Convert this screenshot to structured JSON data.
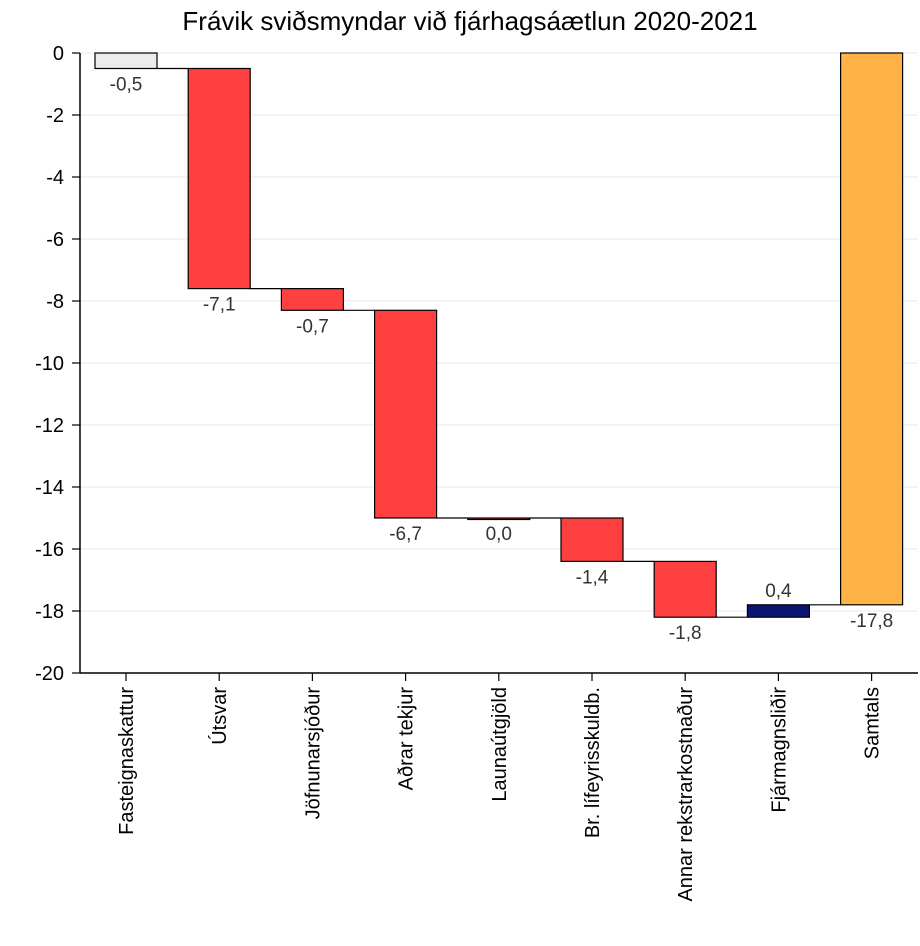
{
  "chart_data": {
    "type": "bar",
    "subtype": "waterfall",
    "title": "Frávik sviðsmyndar við fjárhagsáætlun 2020-2021",
    "xlabel": "",
    "ylabel": "",
    "ylim": [
      -20,
      0
    ],
    "yticks": [
      0,
      -2,
      -4,
      -6,
      -8,
      -10,
      -12,
      -14,
      -16,
      -18,
      -20
    ],
    "grid": true,
    "categories": [
      "Fasteignaskattur",
      "Útsvar",
      "Jöfnunarsjóður",
      "Aðrar tekjur",
      "Launaútgjöld",
      "Br. lífeyrisskuldb.",
      "Annar rekstrarkostnaður",
      "Fjármagnsliðir",
      "Samtals"
    ],
    "values": [
      -0.5,
      -7.1,
      -0.7,
      -6.7,
      0.0,
      -1.4,
      -1.8,
      0.4,
      -17.8
    ],
    "labels": [
      "-0,5",
      "-7,1",
      "-0,7",
      "-6,7",
      "0,0",
      "-1,4",
      "-1,8",
      "0,4",
      "-17,8"
    ],
    "is_total": [
      false,
      false,
      false,
      false,
      false,
      false,
      false,
      false,
      true
    ],
    "colors": {
      "first": "#ececec",
      "decrease": "#ff4040",
      "increase": "#0a1472",
      "total": "#ffb347"
    }
  }
}
